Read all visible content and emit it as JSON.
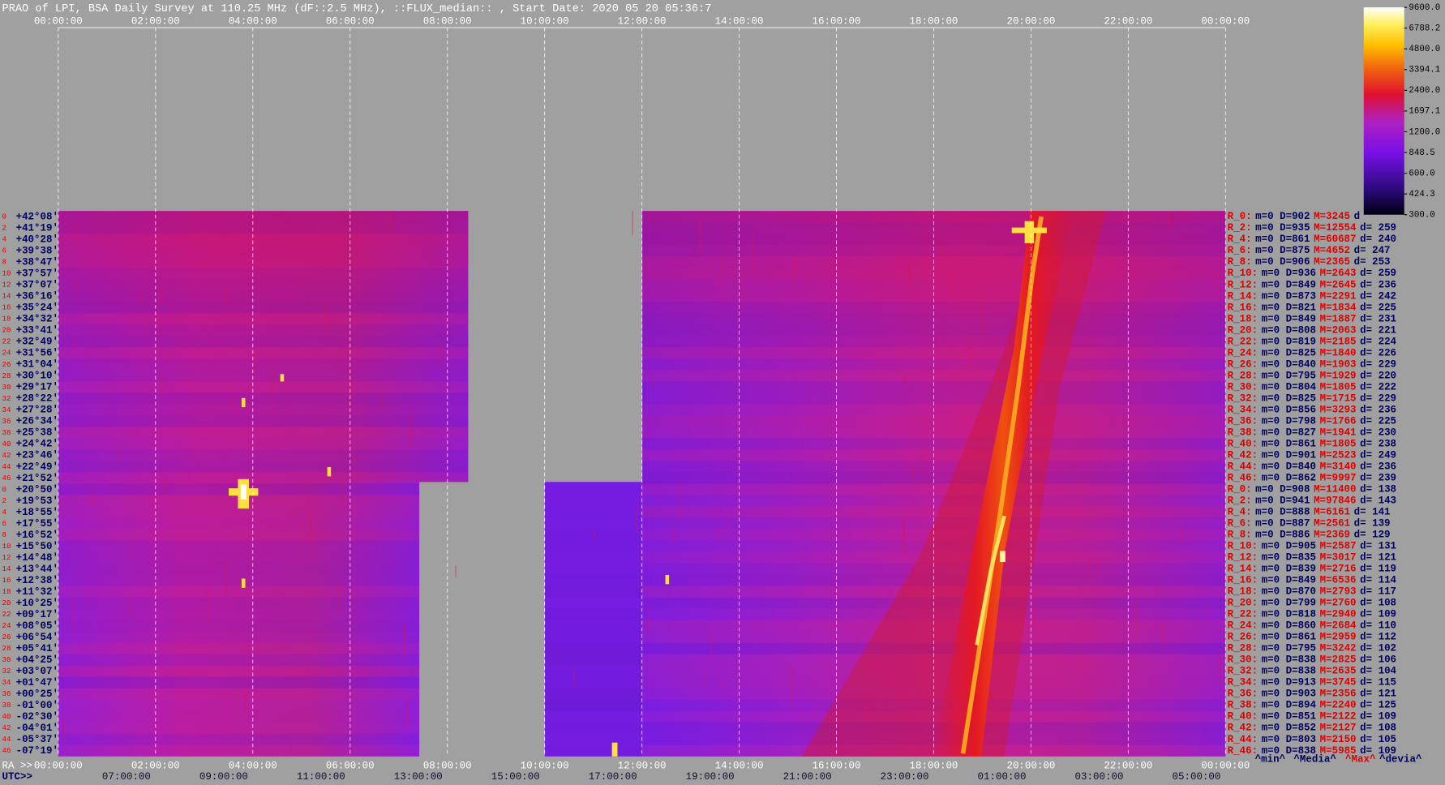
{
  "title": "PRAO of LPI, BSA Daily Survey at 110.25 MHz (dF::2.5 MHz), ::FLUX_median:: , Start Date: 2020 05 20 05:36:7",
  "top_axis": {
    "ticks": [
      "00:00:00",
      "02:00:00",
      "04:00:00",
      "06:00:00",
      "08:00:00",
      "10:00:00",
      "12:00:00",
      "14:00:00",
      "16:00:00",
      "18:00:00",
      "20:00:00",
      "22:00:00",
      "00:00:00"
    ]
  },
  "colorbar": {
    "scale": "log",
    "lim": [
      300,
      9600
    ],
    "ticks": [
      {
        "value": 9600,
        "label": "9600.0"
      },
      {
        "value": 6788.2,
        "label": "6788.2"
      },
      {
        "value": 4800,
        "label": "4800.0"
      },
      {
        "value": 3394.1,
        "label": "3394.1"
      },
      {
        "value": 2400,
        "label": "2400.0"
      },
      {
        "value": 1697.1,
        "label": "1697.1"
      },
      {
        "value": 1200,
        "label": "1200.0"
      },
      {
        "value": 848.5,
        "label": "848.5"
      },
      {
        "value": 600,
        "label": "600.0"
      },
      {
        "value": 424.3,
        "label": "424.3"
      },
      {
        "value": 300,
        "label": "300.0"
      }
    ]
  },
  "rows": {
    "numbers": [
      "0",
      "2",
      "4",
      "6",
      "8",
      "10",
      "12",
      "14",
      "16",
      "18",
      "20",
      "22",
      "24",
      "26",
      "28",
      "30",
      "32",
      "34",
      "36",
      "38",
      "40",
      "42",
      "44",
      "46",
      "0",
      "2",
      "4",
      "6",
      "8",
      "10",
      "12",
      "14",
      "16",
      "18",
      "20",
      "22",
      "24",
      "26",
      "28",
      "30",
      "32",
      "34",
      "36",
      "38",
      "40",
      "42",
      "44",
      "46"
    ],
    "declinations": [
      "+42°08'",
      "+41°19'",
      "+40°28'",
      "+39°38'",
      "+38°47'",
      "+37°57'",
      "+37°07'",
      "+36°16'",
      "+35°24'",
      "+34°32'",
      "+33°41'",
      "+32°49'",
      "+31°56'",
      "+31°04'",
      "+30°10'",
      "+29°17'",
      "+28°22'",
      "+27°28'",
      "+26°34'",
      "+25°38'",
      "+24°42'",
      "+23°46'",
      "+22°49'",
      "+21°52'",
      "+20°50'",
      "+19°53'",
      "+18°55'",
      "+17°55'",
      "+16°52'",
      "+15°50'",
      "+14°48'",
      "+13°44'",
      "+12°38'",
      "+11°32'",
      "+10°25'",
      "+09°17'",
      "+08°05'",
      "+06°54'",
      "+05°41'",
      "+04°25'",
      "+03°07'",
      "+01°47'",
      "+00°25'",
      "-01°00'",
      "-02°30'",
      "-04°01'",
      "-05°37'",
      "-07°19'"
    ]
  },
  "stats": [
    [
      "R_0:",
      "m=0 D=902",
      "M=3245",
      "d"
    ],
    [
      "R_2:",
      "m=0 D=935",
      "M=12554",
      "d= 259"
    ],
    [
      "R_4:",
      "m=0 D=861",
      "M=60687",
      "d= 240"
    ],
    [
      "R_6:",
      "m=0 D=875",
      "M=4652",
      "d= 247"
    ],
    [
      "R_8:",
      "m=0 D=906",
      "M=2365",
      "d= 253"
    ],
    [
      "R_10:",
      "m=0 D=936",
      "M=2643",
      "d= 259"
    ],
    [
      "R_12:",
      "m=0 D=849",
      "M=2645",
      "d= 236"
    ],
    [
      "R_14:",
      "m=0 D=873",
      "M=2291",
      "d= 242"
    ],
    [
      "R_16:",
      "m=0 D=821",
      "M=1834",
      "d= 225"
    ],
    [
      "R_18:",
      "m=0 D=849",
      "M=1887",
      "d= 231"
    ],
    [
      "R_20:",
      "m=0 D=808",
      "M=2063",
      "d= 221"
    ],
    [
      "R_22:",
      "m=0 D=819",
      "M=2185",
      "d= 224"
    ],
    [
      "R_24:",
      "m=0 D=825",
      "M=1840",
      "d= 226"
    ],
    [
      "R_26:",
      "m=0 D=840",
      "M=1903",
      "d= 229"
    ],
    [
      "R_28:",
      "m=0 D=795",
      "M=1929",
      "d= 220"
    ],
    [
      "R_30:",
      "m=0 D=804",
      "M=1805",
      "d= 222"
    ],
    [
      "R_32:",
      "m=0 D=825",
      "M=1715",
      "d= 229"
    ],
    [
      "R_34:",
      "m=0 D=856",
      "M=3293",
      "d= 236"
    ],
    [
      "R_36:",
      "m=0 D=798",
      "M=1766",
      "d= 225"
    ],
    [
      "R_38:",
      "m=0 D=827",
      "M=1941",
      "d= 230"
    ],
    [
      "R_40:",
      "m=0 D=861",
      "M=1805",
      "d= 238"
    ],
    [
      "R_42:",
      "m=0 D=901",
      "M=2523",
      "d= 249"
    ],
    [
      "R_44:",
      "m=0 D=840",
      "M=3140",
      "d= 236"
    ],
    [
      "R_46:",
      "m=0 D=862",
      "M=9997",
      "d= 239"
    ],
    [
      "R_0:",
      "m=0 D=908",
      "M=11400",
      "d= 138"
    ],
    [
      "R_2:",
      "m=0 D=941",
      "M=97846",
      "d= 143"
    ],
    [
      "R_4:",
      "m=0 D=888",
      "M=6161",
      "d= 141"
    ],
    [
      "R_6:",
      "m=0 D=887",
      "M=2561",
      "d= 139"
    ],
    [
      "R_8:",
      "m=0 D=886",
      "M=2369",
      "d= 129"
    ],
    [
      "R_10:",
      "m=0 D=905",
      "M=2587",
      "d= 131"
    ],
    [
      "R_12:",
      "m=0 D=835",
      "M=3017",
      "d= 121"
    ],
    [
      "R_14:",
      "m=0 D=839",
      "M=2716",
      "d= 119"
    ],
    [
      "R_16:",
      "m=0 D=849",
      "M=6536",
      "d= 114"
    ],
    [
      "R_18:",
      "m=0 D=870",
      "M=2793",
      "d= 117"
    ],
    [
      "R_20:",
      "m=0 D=799",
      "M=2760",
      "d= 108"
    ],
    [
      "R_22:",
      "m=0 D=818",
      "M=2940",
      "d= 109"
    ],
    [
      "R_24:",
      "m=0 D=860",
      "M=2684",
      "d= 110"
    ],
    [
      "R_26:",
      "m=0 D=861",
      "M=2959",
      "d= 112"
    ],
    [
      "R_28:",
      "m=0 D=795",
      "M=3242",
      "d= 102"
    ],
    [
      "R_30:",
      "m=0 D=838",
      "M=2825",
      "d= 106"
    ],
    [
      "R_32:",
      "m=0 D=838",
      "M=2635",
      "d= 104"
    ],
    [
      "R_34:",
      "m=0 D=913",
      "M=3745",
      "d= 115"
    ],
    [
      "R_36:",
      "m=0 D=903",
      "M=2356",
      "d= 121"
    ],
    [
      "R_38:",
      "m=0 D=894",
      "M=2240",
      "d= 125"
    ],
    [
      "R_40:",
      "m=0 D=851",
      "M=2122",
      "d= 109"
    ],
    [
      "R_42:",
      "m=0 D=852",
      "M=2127",
      "d= 108"
    ],
    [
      "R_44:",
      "m=0 D=803",
      "M=2150",
      "d= 105"
    ],
    [
      "R_46:",
      "m=0 D=838",
      "M=5985",
      "d= 109"
    ]
  ],
  "stats_footer": [
    "^min^",
    "^Media^",
    "^Max^",
    "^devia^"
  ],
  "bottom_axis": {
    "ra_label": "RA >>",
    "ra_ticks": [
      "00:00:00",
      "02:00:00",
      "04:00:00",
      "06:00:00",
      "08:00:00",
      "10:00:00",
      "12:00:00",
      "14:00:00",
      "16:00:00",
      "18:00:00",
      "20:00:00",
      "22:00:00",
      "00:00:00"
    ],
    "utc_label": "UTC>>",
    "utc_ticks": [
      "07:00:00",
      "09:00:00",
      "11:00:00",
      "13:00:00",
      "15:00:00",
      "17:00:00",
      "19:00:00",
      "21:00:00",
      "23:00:00",
      "01:00:00",
      "03:00:00",
      "05:00:00"
    ]
  }
}
